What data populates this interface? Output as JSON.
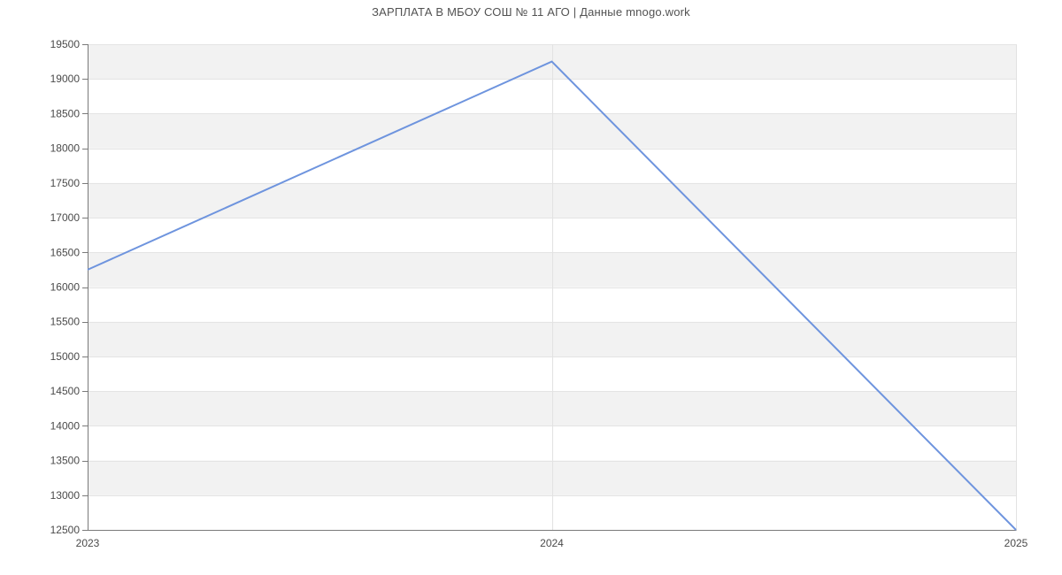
{
  "header": {
    "title": "ЗАРПЛАТА В МБОУ СОШ № 11 АГО | Данные mnogo.work"
  },
  "chart_data": {
    "type": "line",
    "title": "ЗАРПЛАТА В МБОУ СОШ № 11 АГО | Данные mnogo.work",
    "x": [
      "2023",
      "2024",
      "2025"
    ],
    "values": [
      16250,
      19250,
      12500
    ],
    "xlabel": "",
    "ylabel": "",
    "ylim": [
      12500,
      19500
    ],
    "yticks": [
      12500,
      13000,
      13500,
      14000,
      14500,
      15000,
      15500,
      16000,
      16500,
      17000,
      17500,
      18000,
      18500,
      19000,
      19500
    ],
    "grid": true,
    "legend_position": "none",
    "plot_style": "alternating-horizontal-bands",
    "colors": {
      "line": "#6e94de",
      "band": "#f2f2f2",
      "h_gridline": "#e4e4e4",
      "v_gridline": "#e2e2e2",
      "axis": "#7a7a7a",
      "tick_label": "#4a4a4a",
      "title": "#525252",
      "background": "#ffffff"
    }
  }
}
